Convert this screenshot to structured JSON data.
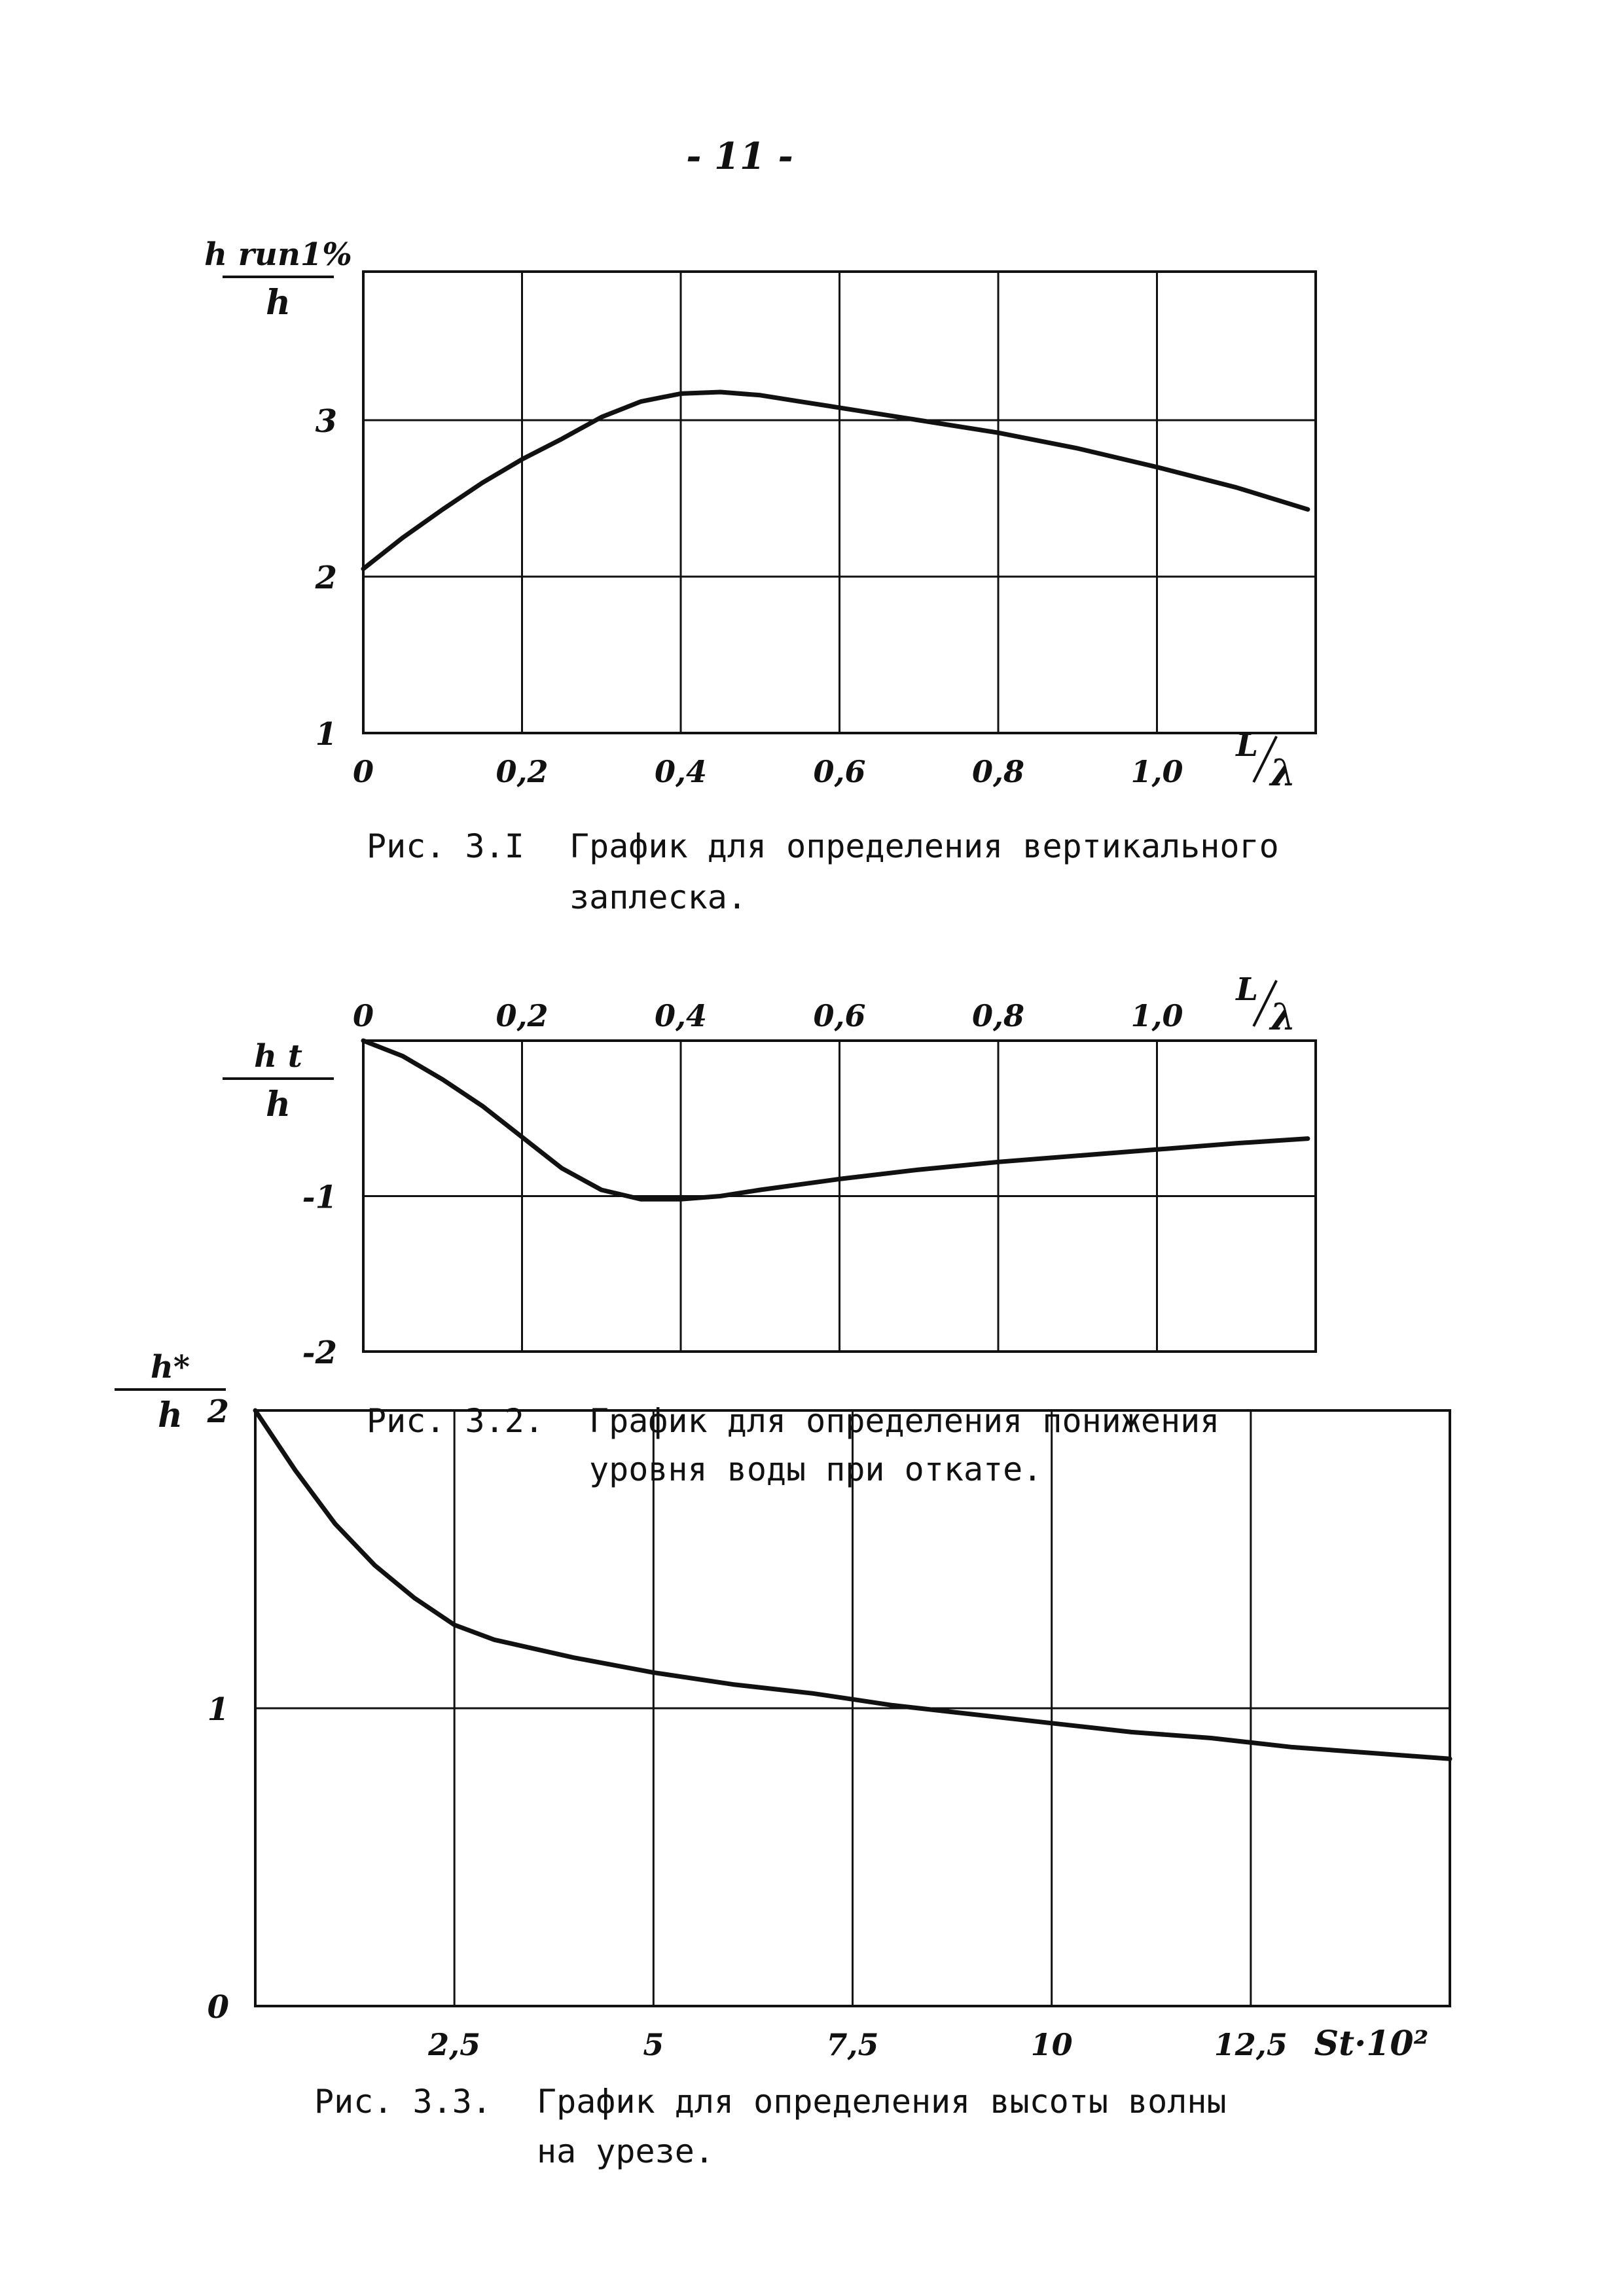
{
  "page_number": "- 11 -",
  "chart_data": [
    {
      "type": "line",
      "title": "",
      "caption": {
        "number": "Рис. 3.I",
        "line1": "График для определения вертикального",
        "line2": "заплеска."
      },
      "ylabel": {
        "top": "h run1%",
        "bottom": "h"
      },
      "xlabel": {
        "top": "L",
        "bottom": "λ"
      },
      "xlim": [
        0,
        1.2
      ],
      "ylim": [
        1,
        3.95
      ],
      "x_grid": [
        0,
        0.2,
        0.4,
        0.6,
        0.8,
        1.0,
        1.2
      ],
      "y_grid": [
        1,
        2,
        3
      ],
      "x_ticks": [
        {
          "value": 0,
          "label": "0"
        },
        {
          "value": 0.2,
          "label": "0,2"
        },
        {
          "value": 0.4,
          "label": "0,4"
        },
        {
          "value": 0.6,
          "label": "0,6"
        },
        {
          "value": 0.8,
          "label": "0,8"
        },
        {
          "value": 1.0,
          "label": "1,0"
        }
      ],
      "y_ticks": [
        {
          "value": 1,
          "label": "1"
        },
        {
          "value": 2,
          "label": "2"
        },
        {
          "value": 3,
          "label": "3"
        }
      ],
      "series": [
        {
          "x": [
            0,
            0.05,
            0.1,
            0.15,
            0.2,
            0.25,
            0.3,
            0.35,
            0.4,
            0.45,
            0.5,
            0.55,
            0.6,
            0.7,
            0.8,
            0.9,
            1.0,
            1.1,
            1.19
          ],
          "y": [
            2.05,
            2.25,
            2.43,
            2.6,
            2.75,
            2.88,
            3.02,
            3.12,
            3.17,
            3.18,
            3.16,
            3.12,
            3.08,
            3.0,
            2.92,
            2.82,
            2.7,
            2.57,
            2.43
          ]
        }
      ]
    },
    {
      "type": "line",
      "title": "",
      "caption": {
        "number": "Рис. 3.2.",
        "line1": "График для определения понижения",
        "line2": "уровня воды при откате."
      },
      "ylabel": {
        "top": "h t",
        "bottom": "h"
      },
      "xlabel": {
        "top": "L",
        "bottom": "λ"
      },
      "xlim": [
        0,
        1.2
      ],
      "ylim": [
        -2,
        0
      ],
      "x_grid": [
        0,
        0.2,
        0.4,
        0.6,
        0.8,
        1.0,
        1.2
      ],
      "y_grid": [
        -2,
        -1,
        0
      ],
      "x_ticks": [
        {
          "value": 0,
          "label": "0"
        },
        {
          "value": 0.2,
          "label": "0,2"
        },
        {
          "value": 0.4,
          "label": "0,4"
        },
        {
          "value": 0.6,
          "label": "0,6"
        },
        {
          "value": 0.8,
          "label": "0,8"
        },
        {
          "value": 1.0,
          "label": "1,0"
        }
      ],
      "y_ticks": [
        {
          "value": -1,
          "label": "-1"
        },
        {
          "value": -2,
          "label": "-2"
        }
      ],
      "series": [
        {
          "x": [
            0,
            0.05,
            0.1,
            0.15,
            0.2,
            0.25,
            0.3,
            0.35,
            0.4,
            0.45,
            0.5,
            0.6,
            0.7,
            0.8,
            0.9,
            1.0,
            1.1,
            1.19
          ],
          "y": [
            0,
            -0.1,
            -0.25,
            -0.42,
            -0.62,
            -0.82,
            -0.96,
            -1.02,
            -1.02,
            -1.0,
            -0.96,
            -0.89,
            -0.83,
            -0.78,
            -0.74,
            -0.7,
            -0.66,
            -0.63
          ]
        }
      ]
    },
    {
      "type": "line",
      "title": "",
      "caption": {
        "number": "Рис. 3.3.",
        "line1": "График для определения высоты волны",
        "line2": "на урезе."
      },
      "ylabel": {
        "top": "h*",
        "bottom": "h"
      },
      "xlabel": {
        "text": "St·10²"
      },
      "xlim": [
        0,
        15
      ],
      "ylim": [
        0,
        2
      ],
      "x_grid": [
        0,
        2.5,
        5,
        7.5,
        10,
        12.5,
        15
      ],
      "y_grid": [
        0,
        1,
        2
      ],
      "x_ticks": [
        {
          "value": 2.5,
          "label": "2,5"
        },
        {
          "value": 5,
          "label": "5"
        },
        {
          "value": 7.5,
          "label": "7,5"
        },
        {
          "value": 10,
          "label": "10"
        },
        {
          "value": 12.5,
          "label": "12,5"
        }
      ],
      "y_ticks": [
        {
          "value": 0,
          "label": "0"
        },
        {
          "value": 1,
          "label": "1"
        },
        {
          "value": 2,
          "label": "2"
        }
      ],
      "series": [
        {
          "x": [
            0,
            0.5,
            1,
            1.5,
            2,
            2.5,
            3,
            4,
            5,
            6,
            7,
            7.5,
            8,
            9,
            10,
            11,
            12,
            13,
            14,
            15
          ],
          "y": [
            2.0,
            1.8,
            1.62,
            1.48,
            1.37,
            1.28,
            1.23,
            1.17,
            1.12,
            1.08,
            1.05,
            1.03,
            1.01,
            0.98,
            0.95,
            0.92,
            0.9,
            0.87,
            0.85,
            0.83
          ]
        }
      ]
    }
  ]
}
